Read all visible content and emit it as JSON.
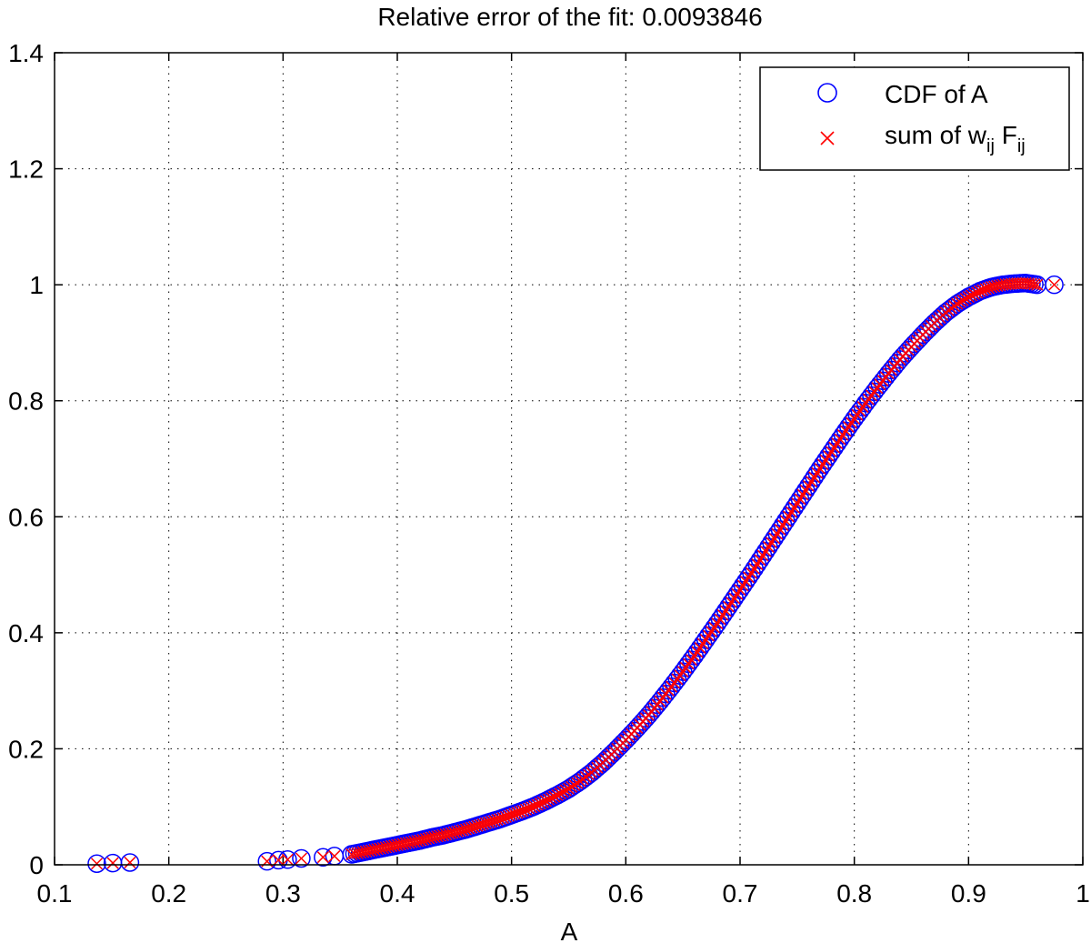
{
  "chart_data": {
    "type": "scatter",
    "title": "Relative error of the fit: 0.0093846",
    "xlabel": "A",
    "ylabel": "",
    "xlim": [
      0.1,
      1.0
    ],
    "ylim": [
      0,
      1.4
    ],
    "x_ticks": [
      "0.1",
      "0.2",
      "0.3",
      "0.4",
      "0.5",
      "0.6",
      "0.7",
      "0.8",
      "0.9",
      "1"
    ],
    "y_ticks": [
      "0",
      "0.2",
      "0.4",
      "0.6",
      "0.8",
      "1",
      "1.2",
      "1.4"
    ],
    "grid": true,
    "legend_position": "top-right",
    "legend": {
      "cdf_label": "CDF of A",
      "sum_label_prefix": "sum of w",
      "sum_label_sub1": "ij",
      "sum_label_mid": " F",
      "sum_label_sub2": "ij"
    },
    "series": [
      {
        "name": "CDF of A",
        "marker": "circle",
        "color": "#0000ff",
        "points": [
          [
            0.137,
            0.002
          ],
          [
            0.151,
            0.003
          ],
          [
            0.166,
            0.004
          ],
          [
            0.286,
            0.006
          ],
          [
            0.296,
            0.008
          ],
          [
            0.304,
            0.009
          ],
          [
            0.316,
            0.011
          ],
          [
            0.335,
            0.013
          ],
          [
            0.345,
            0.015
          ],
          [
            0.36,
            0.018
          ],
          [
            0.37,
            0.022
          ],
          [
            0.38,
            0.026
          ],
          [
            0.39,
            0.03
          ],
          [
            0.4,
            0.034
          ],
          [
            0.41,
            0.038
          ],
          [
            0.42,
            0.042
          ],
          [
            0.43,
            0.047
          ],
          [
            0.44,
            0.051
          ],
          [
            0.45,
            0.056
          ],
          [
            0.46,
            0.061
          ],
          [
            0.47,
            0.067
          ],
          [
            0.48,
            0.073
          ],
          [
            0.49,
            0.079
          ],
          [
            0.5,
            0.086
          ],
          [
            0.51,
            0.093
          ],
          [
            0.52,
            0.101
          ],
          [
            0.53,
            0.11
          ],
          [
            0.54,
            0.12
          ],
          [
            0.55,
            0.131
          ],
          [
            0.56,
            0.144
          ],
          [
            0.57,
            0.159
          ],
          [
            0.58,
            0.176
          ],
          [
            0.59,
            0.195
          ],
          [
            0.6,
            0.215
          ],
          [
            0.61,
            0.236
          ],
          [
            0.62,
            0.258
          ],
          [
            0.63,
            0.282
          ],
          [
            0.64,
            0.307
          ],
          [
            0.65,
            0.333
          ],
          [
            0.66,
            0.36
          ],
          [
            0.67,
            0.388
          ],
          [
            0.68,
            0.416
          ],
          [
            0.69,
            0.445
          ],
          [
            0.7,
            0.474
          ],
          [
            0.71,
            0.503
          ],
          [
            0.72,
            0.533
          ],
          [
            0.73,
            0.563
          ],
          [
            0.74,
            0.593
          ],
          [
            0.75,
            0.623
          ],
          [
            0.76,
            0.653
          ],
          [
            0.77,
            0.683
          ],
          [
            0.78,
            0.712
          ],
          [
            0.79,
            0.741
          ],
          [
            0.8,
            0.769
          ],
          [
            0.81,
            0.796
          ],
          [
            0.82,
            0.822
          ],
          [
            0.83,
            0.847
          ],
          [
            0.84,
            0.871
          ],
          [
            0.85,
            0.893
          ],
          [
            0.86,
            0.914
          ],
          [
            0.87,
            0.934
          ],
          [
            0.88,
            0.952
          ],
          [
            0.89,
            0.967
          ],
          [
            0.9,
            0.979
          ],
          [
            0.91,
            0.989
          ],
          [
            0.92,
            0.996
          ],
          [
            0.93,
            1.0
          ],
          [
            0.94,
            1.002
          ],
          [
            0.95,
            1.003
          ],
          [
            0.96,
            1.0
          ],
          [
            0.975,
            1.0
          ]
        ]
      },
      {
        "name": "sum of w_ij F_ij",
        "marker": "x",
        "color": "#ff0000",
        "points": [
          [
            0.137,
            0.002
          ],
          [
            0.151,
            0.003
          ],
          [
            0.166,
            0.004
          ],
          [
            0.286,
            0.006
          ],
          [
            0.296,
            0.008
          ],
          [
            0.304,
            0.009
          ],
          [
            0.316,
            0.011
          ],
          [
            0.335,
            0.013
          ],
          [
            0.345,
            0.015
          ],
          [
            0.36,
            0.018
          ],
          [
            0.37,
            0.022
          ],
          [
            0.38,
            0.026
          ],
          [
            0.39,
            0.03
          ],
          [
            0.4,
            0.034
          ],
          [
            0.41,
            0.038
          ],
          [
            0.42,
            0.042
          ],
          [
            0.43,
            0.047
          ],
          [
            0.44,
            0.051
          ],
          [
            0.45,
            0.056
          ],
          [
            0.46,
            0.061
          ],
          [
            0.47,
            0.067
          ],
          [
            0.48,
            0.073
          ],
          [
            0.49,
            0.079
          ],
          [
            0.5,
            0.086
          ],
          [
            0.51,
            0.093
          ],
          [
            0.52,
            0.101
          ],
          [
            0.53,
            0.11
          ],
          [
            0.54,
            0.12
          ],
          [
            0.55,
            0.131
          ],
          [
            0.56,
            0.144
          ],
          [
            0.57,
            0.159
          ],
          [
            0.58,
            0.176
          ],
          [
            0.59,
            0.195
          ],
          [
            0.6,
            0.215
          ],
          [
            0.61,
            0.236
          ],
          [
            0.62,
            0.258
          ],
          [
            0.63,
            0.282
          ],
          [
            0.64,
            0.307
          ],
          [
            0.65,
            0.333
          ],
          [
            0.66,
            0.36
          ],
          [
            0.67,
            0.388
          ],
          [
            0.68,
            0.416
          ],
          [
            0.69,
            0.445
          ],
          [
            0.7,
            0.474
          ],
          [
            0.71,
            0.503
          ],
          [
            0.72,
            0.533
          ],
          [
            0.73,
            0.563
          ],
          [
            0.74,
            0.593
          ],
          [
            0.75,
            0.623
          ],
          [
            0.76,
            0.653
          ],
          [
            0.77,
            0.683
          ],
          [
            0.78,
            0.712
          ],
          [
            0.79,
            0.741
          ],
          [
            0.8,
            0.769
          ],
          [
            0.81,
            0.796
          ],
          [
            0.82,
            0.822
          ],
          [
            0.83,
            0.847
          ],
          [
            0.84,
            0.871
          ],
          [
            0.85,
            0.893
          ],
          [
            0.86,
            0.914
          ],
          [
            0.87,
            0.934
          ],
          [
            0.88,
            0.952
          ],
          [
            0.89,
            0.967
          ],
          [
            0.9,
            0.979
          ],
          [
            0.91,
            0.989
          ],
          [
            0.92,
            0.996
          ],
          [
            0.93,
            1.0
          ],
          [
            0.94,
            1.002
          ],
          [
            0.95,
            1.003
          ],
          [
            0.96,
            1.0
          ],
          [
            0.975,
            1.0
          ]
        ]
      }
    ]
  }
}
